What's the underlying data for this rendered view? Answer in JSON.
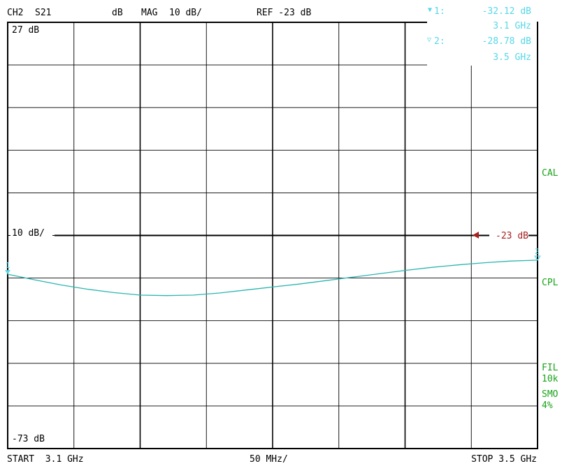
{
  "header": {
    "channel": "CH2",
    "parameter": "S21",
    "format_unit": "dB",
    "format": "MAG",
    "scale": "10 dB/",
    "reference": "REF -23 dB"
  },
  "markers": [
    {
      "symbol": "▼",
      "id": "1:",
      "level": "-32.12 dB",
      "frequency": "3.1 GHz",
      "label": "1"
    },
    {
      "symbol": "▽",
      "id": "2:",
      "level": "-28.78 dB",
      "frequency": "3.5 GHz",
      "label": "2"
    }
  ],
  "softkeys": [
    "CAL",
    "CPL",
    "FIL",
    "10k",
    "SMO",
    "4%"
  ],
  "reference_marker_label": "-23 dB",
  "footer": {
    "start": "START  3.1 GHz",
    "span_div": "50 MHz/",
    "stop": "STOP 3.5 GHz"
  },
  "colors": {
    "trace": "#2bb5b0",
    "marker_text": "#55d8e8",
    "softkey_text": "#1aa31a",
    "reference": "#a82020",
    "grid": "#000000"
  },
  "chart_data": {
    "type": "line",
    "title": "",
    "xlabel": "",
    "ylabel": "",
    "top_label": "27 dB",
    "bottom_label": "-73 dB",
    "ref_label": "10 dB/",
    "xlim": [
      3.1,
      3.5
    ],
    "ylim": [
      -73,
      27
    ],
    "grid": true,
    "x_divisions": 8,
    "y_divisions": 10,
    "reference_level": -23,
    "series": [
      {
        "x": [
          3.1,
          3.12,
          3.14,
          3.16,
          3.18,
          3.2,
          3.22,
          3.24,
          3.26,
          3.28,
          3.3,
          3.32,
          3.34,
          3.36,
          3.38,
          3.4,
          3.42,
          3.44,
          3.46,
          3.48,
          3.5
        ],
        "values": [
          -32.1,
          -33.4,
          -34.6,
          -35.6,
          -36.4,
          -37.0,
          -37.1,
          -37.0,
          -36.5,
          -35.8,
          -35.1,
          -34.4,
          -33.6,
          -32.8,
          -32.0,
          -31.2,
          -30.5,
          -29.9,
          -29.4,
          -29.0,
          -28.8
        ]
      }
    ]
  }
}
